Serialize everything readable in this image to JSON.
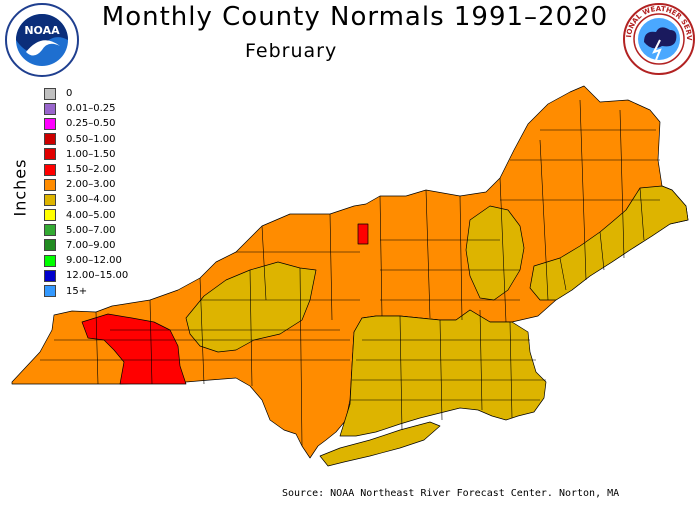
{
  "header": {
    "title": "Monthly County Normals 1991–2020",
    "subtitle": "February"
  },
  "logos": {
    "left": {
      "text": "NOAA",
      "ring_text": "U.S. DEPARTMENT OF COMMERCE · NATIONAL OCEANIC AND ATMOSPHERIC ADMINISTRATION",
      "icon": "noaa-logo"
    },
    "right": {
      "ring_text": "NATIONAL WEATHER SERVICE",
      "icon": "nws-logo"
    }
  },
  "legend": {
    "units": "Inches",
    "items": [
      {
        "label": "0",
        "color": "#c0c0c0"
      },
      {
        "label": "0.01–0.25",
        "color": "#9966cc"
      },
      {
        "label": "0.25–0.50",
        "color": "#ff00ff"
      },
      {
        "label": "0.50–1.00",
        "color": "#cc0000"
      },
      {
        "label": "1.00–1.50",
        "color": "#e00000"
      },
      {
        "label": "1.50–2.00",
        "color": "#ff0000"
      },
      {
        "label": "2.00–3.00",
        "color": "#ff8c00"
      },
      {
        "label": "3.00–4.00",
        "color": "#ddb400"
      },
      {
        "label": "4.00–5.00",
        "color": "#ffff00"
      },
      {
        "label": "5.00–7.00",
        "color": "#33aa33"
      },
      {
        "label": "7.00–9.00",
        "color": "#228b22"
      },
      {
        "label": "9.00–12.00",
        "color": "#00ff00"
      },
      {
        "label": "12.00–15.00",
        "color": "#0000cc"
      },
      {
        "label": "15+",
        "color": "#3399ff"
      }
    ]
  },
  "source": "Source: NOAA Northeast River Forecast Center. Norton, MA",
  "colors": {
    "orange": "#ff8c00",
    "gold": "#ddb400",
    "red": "#ff0000",
    "border": "#000000"
  }
}
